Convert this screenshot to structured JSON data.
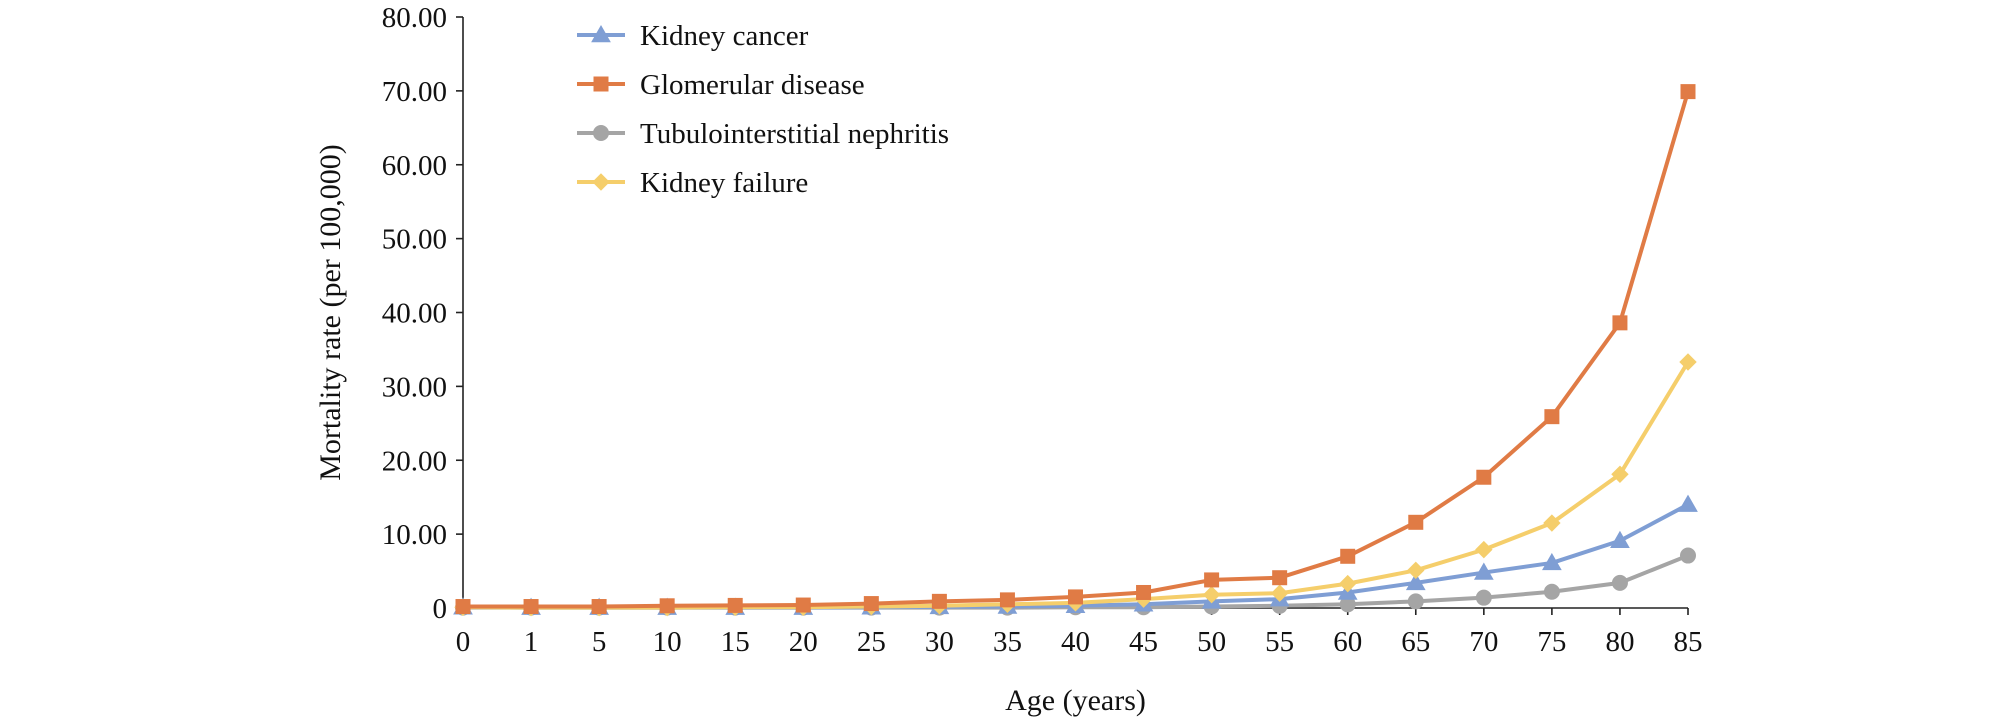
{
  "chart_data": {
    "type": "line",
    "title": "",
    "xlabel": "Age (years)",
    "ylabel": "Mortality rate (per 100,000)",
    "categories": [
      "0",
      "1",
      "5",
      "10",
      "15",
      "20",
      "25",
      "30",
      "35",
      "40",
      "45",
      "50",
      "55",
      "60",
      "65",
      "70",
      "75",
      "80",
      "85"
    ],
    "ylim": [
      0,
      80
    ],
    "yticks": [
      "0",
      "10.00",
      "20.00",
      "30.00",
      "40.00",
      "50.00",
      "60.00",
      "70.00",
      "80.00"
    ],
    "ytick_values": [
      0,
      10,
      20,
      30,
      40,
      50,
      60,
      70,
      80
    ],
    "grid": false,
    "legend_position": "top-left",
    "series": [
      {
        "name": "Kidney cancer",
        "color": "#7F9ED4",
        "marker": "triangle",
        "values": [
          0.1,
          0.05,
          0.05,
          0.05,
          0.05,
          0.05,
          0.1,
          0.15,
          0.2,
          0.3,
          0.5,
          0.9,
          1.2,
          2.1,
          3.4,
          4.8,
          6.1,
          9.1,
          14.0
        ]
      },
      {
        "name": "Glomerular disease",
        "color": "#E07B45",
        "marker": "square",
        "values": [
          0.2,
          0.2,
          0.2,
          0.3,
          0.35,
          0.4,
          0.6,
          0.9,
          1.1,
          1.5,
          2.1,
          3.8,
          4.1,
          7.0,
          11.6,
          17.7,
          25.9,
          38.6,
          69.9
        ]
      },
      {
        "name": "Tubulointerstitial nephritis",
        "color": "#A5A5A5",
        "marker": "circle",
        "values": [
          0.05,
          0.05,
          0.05,
          0.05,
          0.05,
          0.05,
          0.05,
          0.05,
          0.05,
          0.1,
          0.1,
          0.2,
          0.3,
          0.5,
          0.9,
          1.4,
          2.2,
          3.4,
          7.1
        ]
      },
      {
        "name": "Kidney failure",
        "color": "#F5CE6B",
        "marker": "diamond",
        "values": [
          0.1,
          0.05,
          0.05,
          0.05,
          0.1,
          0.1,
          0.2,
          0.3,
          0.5,
          0.7,
          1.2,
          1.8,
          2.0,
          3.3,
          5.1,
          7.9,
          11.5,
          18.1,
          33.3
        ]
      }
    ]
  }
}
